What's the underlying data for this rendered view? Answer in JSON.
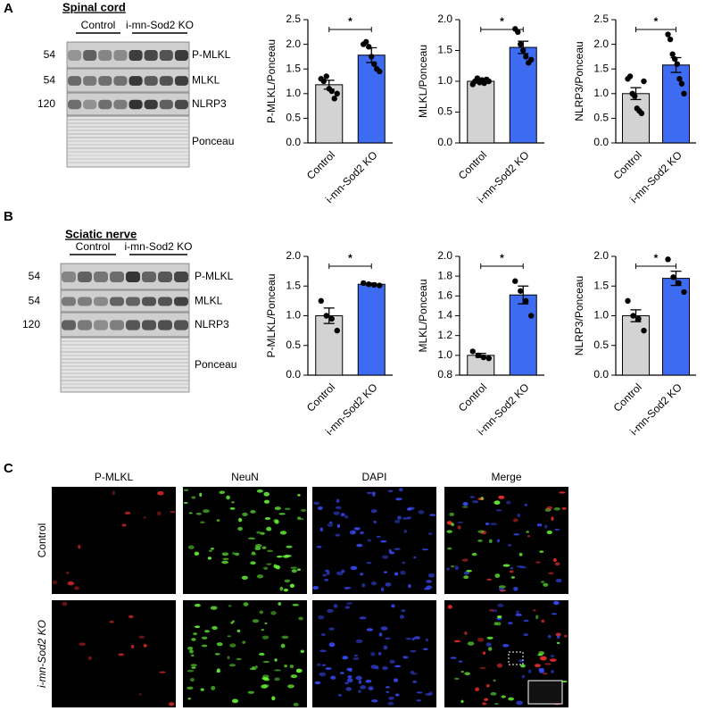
{
  "panels": {
    "a": {
      "label": "A",
      "tissue": "Spinal cord",
      "groups": [
        "Control",
        "i-mn-Sod2 KO"
      ],
      "weights": [
        "54",
        "54",
        "120"
      ],
      "bands": [
        "P-MLKL",
        "MLKL",
        "NLRP3",
        "Ponceau"
      ]
    },
    "b": {
      "label": "B",
      "tissue": "Sciatic nerve",
      "groups": [
        "Control",
        "i-mn-Sod2 KO"
      ],
      "weights": [
        "54",
        "54",
        "120"
      ],
      "bands": [
        "P-MLKL",
        "MLKL",
        "NLRP3",
        "Ponceau"
      ]
    },
    "c": {
      "label": "C",
      "columns": [
        "P-MLKL",
        "NeuN",
        "DAPI",
        "Merge"
      ],
      "rows": [
        "Control",
        "i-mn-Sod2 KO"
      ]
    }
  },
  "chart_data": [
    {
      "type": "bar",
      "y_label": "P-MLKL/Ponceau",
      "categories": [
        "Control",
        "i-mn-Sod2 KO"
      ],
      "colors": [
        "#d3d3d3",
        "#3d6cf2"
      ],
      "values": [
        1.18,
        1.78
      ],
      "errors": [
        0.09,
        0.15
      ],
      "points": [
        [
          1.3,
          1.25,
          1.35,
          1.1,
          1.05,
          0.9,
          1.0
        ],
        [
          2.0,
          2.05,
          1.95,
          1.75,
          1.6,
          1.5,
          1.45
        ]
      ],
      "significance": "*",
      "ylim": [
        0,
        2.5
      ],
      "yticks": [
        {
          "value": 0,
          "label": "0.0"
        },
        0.5,
        {
          "value": 1,
          "label": "1.0"
        },
        1.5,
        {
          "value": 2,
          "label": "2.0"
        },
        2.5
      ]
    },
    {
      "type": "bar",
      "y_label": "MLKL/Ponceau",
      "categories": [
        "Control",
        "i-mn-Sod2 KO"
      ],
      "colors": [
        "#d3d3d3",
        "#3d6cf2"
      ],
      "values": [
        1.0,
        1.55
      ],
      "errors": [
        0.03,
        0.1
      ],
      "points": [
        [
          0.95,
          1.0,
          1.05,
          0.98,
          1.02,
          0.97,
          1.03,
          1.0
        ],
        [
          1.85,
          1.8,
          1.6,
          1.5,
          1.4,
          1.3,
          1.35
        ]
      ],
      "significance": "*",
      "ylim": [
        0,
        2
      ],
      "yticks": [
        {
          "value": 0,
          "label": "0.0"
        },
        0.5,
        {
          "value": 1,
          "label": "1.0"
        },
        1.5,
        {
          "value": 2,
          "label": "2.0"
        }
      ]
    },
    {
      "type": "bar",
      "y_label": "NLRP3/Ponceau",
      "categories": [
        "Control",
        "i-mn-Sod2 KO"
      ],
      "colors": [
        "#d3d3d3",
        "#3d6cf2"
      ],
      "values": [
        1.0,
        1.58
      ],
      "errors": [
        0.12,
        0.15
      ],
      "points": [
        [
          1.3,
          1.35,
          1.0,
          0.95,
          0.7,
          0.65,
          0.6,
          1.25
        ],
        [
          2.2,
          2.1,
          1.8,
          1.7,
          1.6,
          1.3,
          1.2,
          1.0
        ]
      ],
      "significance": "*",
      "ylim": [
        0,
        2.5
      ],
      "yticks": [
        {
          "value": 0,
          "label": "0.0"
        },
        0.5,
        {
          "value": 1,
          "label": "1.0"
        },
        1.5,
        {
          "value": 2,
          "label": "2.0"
        },
        2.5
      ]
    },
    {
      "type": "bar",
      "y_label": "P-MLKL/Ponceau",
      "categories": [
        "Control",
        "i-mn-Sod2 KO"
      ],
      "colors": [
        "#d3d3d3",
        "#3d6cf2"
      ],
      "values": [
        1.0,
        1.53
      ],
      "errors": [
        0.13,
        0.02
      ],
      "points": [
        [
          1.25,
          1.0,
          0.95,
          0.75
        ],
        [
          1.55,
          1.53,
          1.52,
          1.51
        ]
      ],
      "significance": "*",
      "ylim": [
        0,
        2
      ],
      "yticks": [
        {
          "value": 0,
          "label": "0.0"
        },
        0.5,
        {
          "value": 1,
          "label": "1.0"
        },
        1.5,
        {
          "value": 2,
          "label": "2.0"
        }
      ]
    },
    {
      "type": "bar",
      "y_label": "MLKL/Ponceau",
      "categories": [
        "Control",
        "i-mn-Sod2 KO"
      ],
      "colors": [
        "#d3d3d3",
        "#3d6cf2"
      ],
      "values": [
        1.0,
        1.61
      ],
      "errors": [
        0.02,
        0.09
      ],
      "points": [
        [
          1.04,
          1.0,
          0.98,
          0.97
        ],
        [
          1.75,
          1.65,
          1.55,
          1.4
        ]
      ],
      "significance": "*",
      "ylim": [
        0.8,
        2
      ],
      "yticks": [
        0.8,
        {
          "value": 1,
          "label": "1.0"
        },
        1.2,
        1.4,
        1.6,
        1.8,
        {
          "value": 2,
          "label": "2.0"
        }
      ]
    },
    {
      "type": "bar",
      "y_label": "NLRP3/Ponceau",
      "categories": [
        "Control",
        "i-mn-Sod2 KO"
      ],
      "colors": [
        "#d3d3d3",
        "#3d6cf2"
      ],
      "values": [
        1.0,
        1.63
      ],
      "errors": [
        0.1,
        0.12
      ],
      "points": [
        [
          1.25,
          1.0,
          0.95,
          0.75
        ],
        [
          1.95,
          1.65,
          1.55,
          1.4
        ]
      ],
      "significance": "*",
      "ylim": [
        0,
        2
      ],
      "yticks": [
        {
          "value": 0,
          "label": "0.0"
        },
        0.5,
        {
          "value": 1,
          "label": "1.0"
        },
        1.5,
        {
          "value": 2,
          "label": "2.0"
        }
      ]
    }
  ]
}
